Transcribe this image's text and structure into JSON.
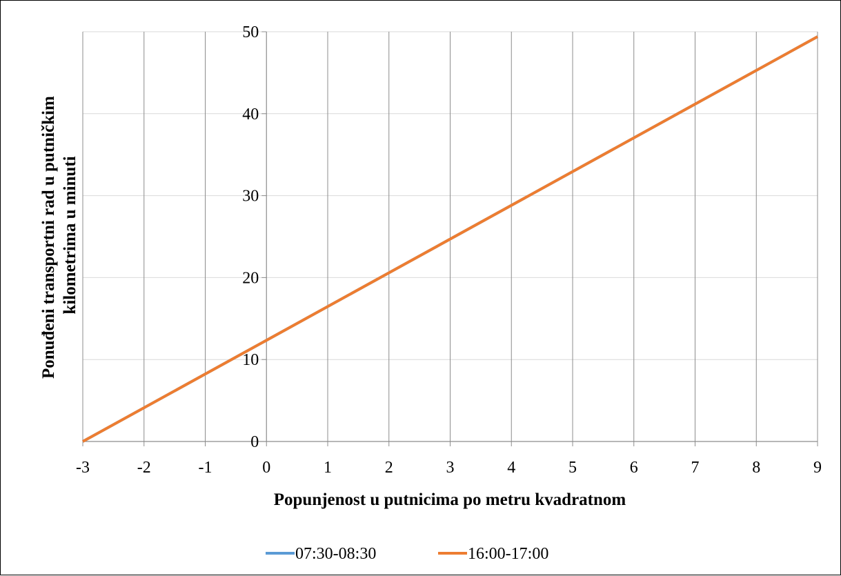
{
  "chart_data": {
    "type": "line",
    "xlabel": "Popunjenost u putnicima po metru kvadratnom",
    "ylabel_lines": [
      "Ponuđeni transportni rad u putničkim",
      "kilometrima u minuti"
    ],
    "xlim": [
      -3,
      9
    ],
    "ylim": [
      0,
      50
    ],
    "x_ticks": [
      -3,
      -2,
      -1,
      0,
      1,
      2,
      3,
      4,
      5,
      6,
      7,
      8,
      9
    ],
    "y_ticks": [
      0,
      10,
      20,
      30,
      40,
      50
    ],
    "grid": true,
    "legend_position": "bottom",
    "series": [
      {
        "name": "07:30-08:30",
        "color": "#5B9BD5",
        "x": [
          -3,
          9
        ],
        "y": [
          0,
          49.4
        ]
      },
      {
        "name": "16:00-17:00",
        "color": "#ED7D31",
        "x": [
          -3,
          9
        ],
        "y": [
          0,
          49.4
        ]
      }
    ]
  }
}
